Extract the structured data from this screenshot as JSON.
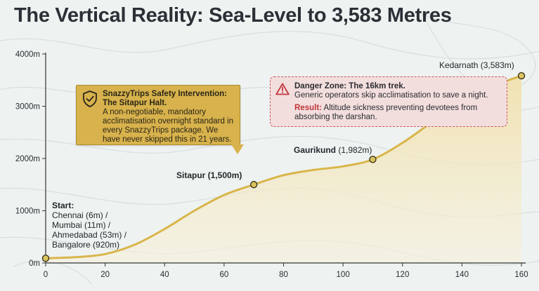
{
  "title": "The Vertical Reality: Sea-Level to 3,583 Metres",
  "colors": {
    "line": "#e2c05a",
    "line_stroke": "#d9b54a",
    "fill_top": "#f1dfa6",
    "fill_bottom": "#f7f1dc",
    "marker": "#dcc560",
    "axis": "#333333",
    "callout_gold": "#d8b24c",
    "danger_bg": "#f3dede",
    "danger_red": "#c0363a"
  },
  "chart_data": {
    "type": "area",
    "title": "The Vertical Reality: Sea-Level to 3,583 Metres",
    "xlabel": "",
    "ylabel": "",
    "xlim": [
      0,
      160
    ],
    "ylim": [
      0,
      4000
    ],
    "xticks": [
      0,
      20,
      40,
      60,
      80,
      100,
      120,
      140,
      160
    ],
    "yticks": [
      0,
      1000,
      2000,
      3000,
      4000
    ],
    "ytick_labels": [
      "0m",
      "1000m",
      "2000m",
      "3000m",
      "4000m"
    ],
    "grid": false,
    "series": [
      {
        "values_xy": [
          [
            0,
            90
          ],
          [
            10,
            110
          ],
          [
            20,
            170
          ],
          [
            30,
            350
          ],
          [
            40,
            650
          ],
          [
            50,
            1000
          ],
          [
            60,
            1300
          ],
          [
            70,
            1500
          ],
          [
            80,
            1680
          ],
          [
            90,
            1780
          ],
          [
            100,
            1850
          ],
          [
            110,
            1982
          ],
          [
            120,
            2300
          ],
          [
            130,
            2700
          ],
          [
            140,
            3100
          ],
          [
            150,
            3380
          ],
          [
            160,
            3583
          ]
        ]
      }
    ],
    "markers": [
      {
        "x": 0,
        "y": 90
      },
      {
        "x": 70,
        "y": 1500
      },
      {
        "x": 110,
        "y": 1982
      },
      {
        "x": 160,
        "y": 3583
      }
    ]
  },
  "labels": {
    "start_head": "Start:",
    "start_lines": [
      "Chennai (6m) /",
      "Mumbai (11m) /",
      "Ahmedabad (53m) /",
      "Bangalore (920m)"
    ],
    "sitapur": "Sitapur (1,500m)",
    "gaurikund_name": "Gaurikund",
    "gaurikund_alt": "(1,982m)",
    "kedarnath": "Kedarnath (3,583m)"
  },
  "safety_callout": {
    "icon": "shield-check-icon",
    "head_line1": "SnazzyTrips Safety Intervention:",
    "head_line2": "The Sitapur Halt.",
    "body": "A non-negotiable, mandatory acclimatisation overnight standard in every SnazzyTrips package. We have never skipped this in 21 years."
  },
  "danger_callout": {
    "icon": "warning-triangle-icon",
    "head": "Danger Zone: The 16km trek.",
    "line": "Generic operators skip acclimatisation to save a night.",
    "result_key": "Result:",
    "result_text": "Altitude sickness preventing devotees from absorbing the darshan."
  }
}
